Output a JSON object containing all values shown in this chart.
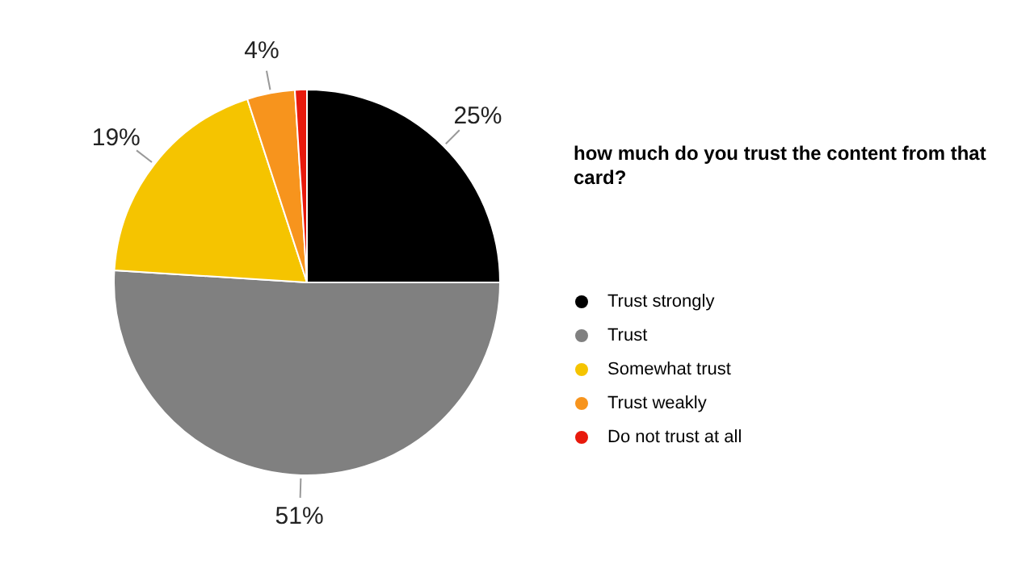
{
  "chart_data": {
    "type": "pie",
    "title": "how much do you trust the content from that card?",
    "categories": [
      "Trust strongly",
      "Trust",
      "Somewhat trust",
      "Trust weakly",
      "Do not trust at all"
    ],
    "values": [
      25,
      51,
      19,
      4,
      1
    ],
    "colors": [
      "#000000",
      "#808080",
      "#f5c400",
      "#f7941d",
      "#e8190c"
    ],
    "value_labels": [
      "25%",
      "51%",
      "19%",
      "4%",
      null
    ],
    "legend": "right"
  }
}
